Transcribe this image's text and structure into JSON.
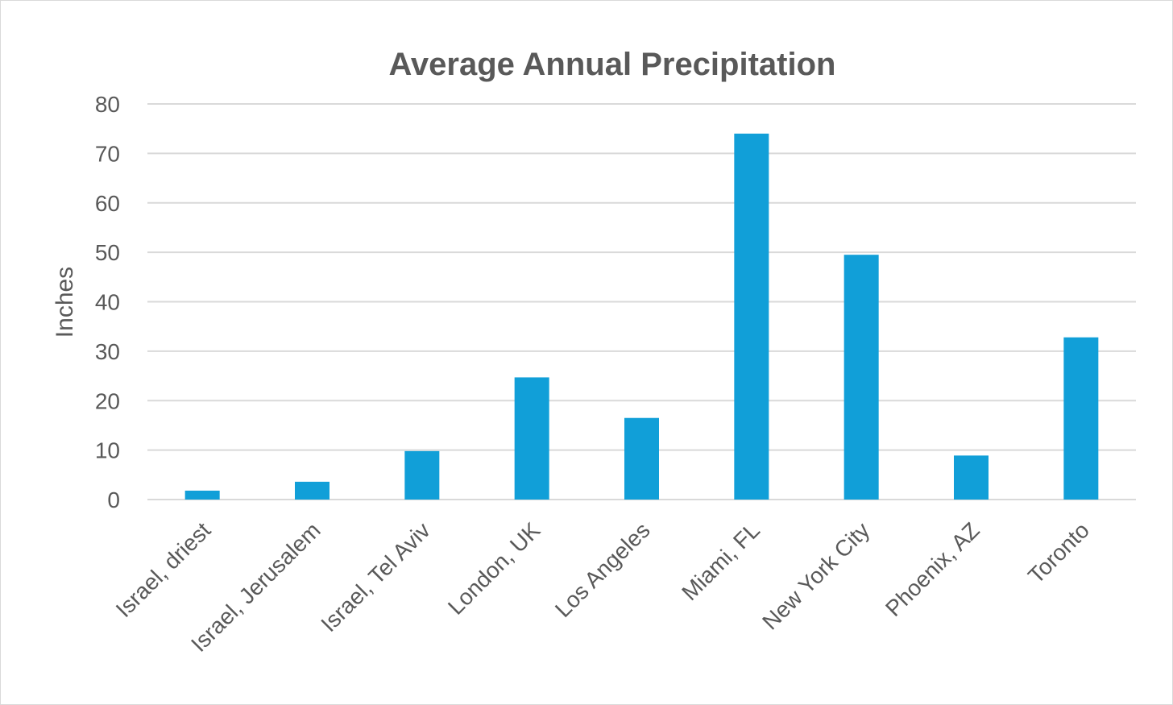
{
  "chart_data": {
    "type": "bar",
    "title": "Average Annual Precipitation",
    "xlabel": "",
    "ylabel": "Inches",
    "ylim": [
      0,
      80
    ],
    "yticks": [
      0,
      10,
      20,
      30,
      40,
      50,
      60,
      70,
      80
    ],
    "grid": true,
    "legend": "none",
    "bar_color": "#119fd8",
    "categories": [
      "Israel, driest",
      "Israel, Jerusalem",
      "Israel, Tel Aviv",
      "London, UK",
      "Los Angeles",
      "Miami, FL",
      "New York City",
      "Phoenix, AZ",
      "Toronto"
    ],
    "values": [
      1.8,
      3.6,
      9.8,
      24.7,
      16.5,
      74,
      49.5,
      8.9,
      32.8
    ]
  }
}
